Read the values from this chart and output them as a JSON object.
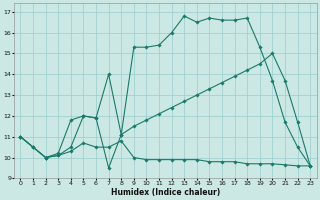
{
  "xlabel": "Humidex (Indice chaleur)",
  "bg_color": "#cce8e4",
  "grid_color": "#99cccc",
  "line_color": "#1a7a6a",
  "line1_x": [
    0,
    1,
    2,
    3,
    4,
    5,
    6,
    7,
    8,
    9,
    10,
    11,
    12,
    13,
    14,
    15,
    16,
    17,
    18,
    19,
    20,
    21,
    22,
    23
  ],
  "line1_y": [
    11.0,
    10.5,
    10.0,
    10.2,
    11.8,
    12.0,
    11.9,
    9.5,
    11.1,
    15.3,
    15.3,
    15.4,
    16.0,
    16.8,
    16.5,
    16.7,
    16.6,
    16.6,
    16.7,
    15.3,
    13.7,
    11.7,
    10.5,
    9.6
  ],
  "line2_x": [
    0,
    1,
    2,
    3,
    4,
    5,
    6,
    7,
    8,
    9,
    10,
    11,
    12,
    13,
    14,
    15,
    16,
    17,
    18,
    19,
    20,
    21,
    22,
    23
  ],
  "line2_y": [
    11.0,
    10.5,
    10.0,
    10.1,
    10.3,
    10.7,
    10.5,
    10.5,
    10.8,
    10.0,
    9.9,
    9.9,
    9.9,
    9.9,
    9.9,
    9.8,
    9.8,
    9.8,
    9.7,
    9.7,
    9.7,
    9.65,
    9.6,
    9.6
  ],
  "line3_x": [
    0,
    2,
    3,
    4,
    5,
    6,
    7,
    8,
    9,
    10,
    11,
    12,
    13,
    14,
    15,
    16,
    17,
    18,
    19,
    20,
    21,
    22,
    23
  ],
  "line3_y": [
    11.0,
    10.0,
    10.1,
    10.5,
    12.0,
    11.9,
    14.0,
    11.1,
    11.5,
    11.8,
    12.1,
    12.4,
    12.7,
    13.0,
    13.3,
    13.6,
    13.9,
    14.2,
    14.5,
    15.0,
    13.7,
    11.7,
    9.6
  ],
  "xlim": [
    -0.5,
    23.5
  ],
  "ylim": [
    9.0,
    17.4
  ],
  "xticks": [
    0,
    1,
    2,
    3,
    4,
    5,
    6,
    7,
    8,
    9,
    10,
    11,
    12,
    13,
    14,
    15,
    16,
    17,
    18,
    19,
    20,
    21,
    22,
    23
  ],
  "yticks": [
    9,
    10,
    11,
    12,
    13,
    14,
    15,
    16,
    17
  ]
}
